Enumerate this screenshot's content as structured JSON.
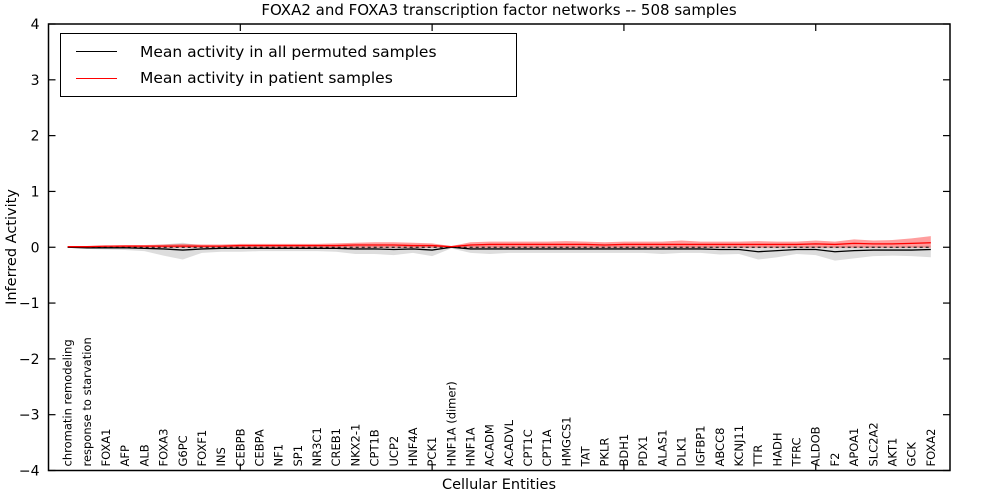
{
  "chart": {
    "title": "FOXA2 and FOXA3 transcription factor networks -- 508 samples",
    "xlabel": "Cellular Entities",
    "ylabel": "Inferred Activity"
  },
  "legend": {
    "items": [
      {
        "label": "Mean activity in all permuted samples",
        "color": "#000000"
      },
      {
        "label": "Mean activity in patient samples",
        "color": "#ff0000"
      }
    ],
    "position": "upper left"
  },
  "chart_data": {
    "type": "line",
    "title": "FOXA2 and FOXA3 transcription factor networks -- 508 samples",
    "xlabel": "Cellular Entities",
    "ylabel": "Inferred Activity",
    "ylim": [
      -4,
      4
    ],
    "yticks": [
      -4,
      -3,
      -2,
      -1,
      0,
      1,
      2,
      3,
      4
    ],
    "xticks_major": [
      10,
      20,
      30,
      40
    ],
    "grid": false,
    "legend_position": "upper left",
    "zero_line": {
      "style": "dashed",
      "color": "#000000",
      "y": 0
    },
    "categories": [
      "chromatin remodeling",
      "response to starvation",
      "FOXA1",
      "AFP",
      "ALB",
      "FOXA3",
      "G6PC",
      "FOXF1",
      "INS",
      "CEBPB",
      "CEBPA",
      "NF1",
      "SP1",
      "NR3C1",
      "CREB1",
      "NKX2-1",
      "CPT1B",
      "UCP2",
      "HNF4A",
      "PCK1",
      "HNF1A (dimer)",
      "HNF1A",
      "ACADM",
      "ACADVL",
      "CPT1C",
      "CPT1A",
      "HMGCS1",
      "TAT",
      "PKLR",
      "BDH1",
      "PDX1",
      "ALAS1",
      "DLK1",
      "IGFBP1",
      "ABCC8",
      "KCNJ11",
      "TTR",
      "HADH",
      "TFRC",
      "ALDOB",
      "F2",
      "APOA1",
      "SLC2A2",
      "AKT1",
      "GCK",
      "FOXA2"
    ],
    "series": [
      {
        "name": "Mean activity in all permuted samples",
        "color": "#000000",
        "band_color": "#bbbbbb",
        "band_opacity": 0.5,
        "values": [
          0.0,
          -0.01,
          -0.01,
          -0.01,
          -0.02,
          -0.03,
          -0.05,
          -0.03,
          -0.02,
          -0.02,
          -0.02,
          -0.02,
          -0.02,
          -0.02,
          -0.02,
          -0.03,
          -0.03,
          -0.04,
          -0.03,
          -0.05,
          0.0,
          -0.03,
          -0.03,
          -0.03,
          -0.03,
          -0.03,
          -0.03,
          -0.03,
          -0.03,
          -0.03,
          -0.03,
          -0.03,
          -0.03,
          -0.03,
          -0.04,
          -0.04,
          -0.08,
          -0.06,
          -0.04,
          -0.04,
          -0.08,
          -0.06,
          -0.05,
          -0.05,
          -0.05,
          -0.04
        ],
        "band_low": [
          -0.01,
          -0.03,
          -0.04,
          -0.05,
          -0.07,
          -0.15,
          -0.22,
          -0.1,
          -0.08,
          -0.08,
          -0.07,
          -0.07,
          -0.07,
          -0.07,
          -0.08,
          -0.12,
          -0.12,
          -0.14,
          -0.1,
          -0.16,
          -0.02,
          -0.1,
          -0.12,
          -0.1,
          -0.1,
          -0.1,
          -0.1,
          -0.1,
          -0.1,
          -0.1,
          -0.1,
          -0.12,
          -0.1,
          -0.1,
          -0.13,
          -0.12,
          -0.22,
          -0.18,
          -0.12,
          -0.14,
          -0.24,
          -0.2,
          -0.16,
          -0.15,
          -0.16,
          -0.18
        ],
        "band_high": [
          0.01,
          0.01,
          0.02,
          0.02,
          0.03,
          0.05,
          0.08,
          0.03,
          0.02,
          0.02,
          0.02,
          0.02,
          0.02,
          0.02,
          0.02,
          0.02,
          0.02,
          0.02,
          0.02,
          0.02,
          0.02,
          0.02,
          0.02,
          0.02,
          0.02,
          0.02,
          0.02,
          0.02,
          0.02,
          0.02,
          0.02,
          0.02,
          0.02,
          0.02,
          0.02,
          0.02,
          0.02,
          0.02,
          0.02,
          0.02,
          0.02,
          0.02,
          0.02,
          0.01,
          0.02,
          0.03
        ]
      },
      {
        "name": "Mean activity in patient samples",
        "color": "#ff0000",
        "band_color": "#ff0000",
        "band_opacity": 0.38,
        "values": [
          0.01,
          0.01,
          0.02,
          0.02,
          0.02,
          0.02,
          0.02,
          0.02,
          0.02,
          0.03,
          0.03,
          0.03,
          0.03,
          0.03,
          0.03,
          0.04,
          0.04,
          0.04,
          0.03,
          0.03,
          0.01,
          0.04,
          0.05,
          0.05,
          0.05,
          0.05,
          0.05,
          0.05,
          0.04,
          0.05,
          0.05,
          0.05,
          0.05,
          0.05,
          0.05,
          0.05,
          0.05,
          0.05,
          0.05,
          0.06,
          0.05,
          0.07,
          0.06,
          0.06,
          0.07,
          0.08
        ],
        "band_low": [
          0.0,
          0.0,
          -0.01,
          -0.01,
          -0.01,
          -0.01,
          -0.01,
          -0.01,
          -0.01,
          -0.01,
          -0.01,
          -0.01,
          -0.01,
          -0.01,
          -0.01,
          -0.01,
          -0.01,
          -0.01,
          -0.01,
          -0.01,
          0.0,
          -0.01,
          -0.01,
          -0.01,
          -0.01,
          -0.01,
          -0.01,
          -0.01,
          -0.01,
          -0.01,
          -0.01,
          -0.01,
          -0.01,
          -0.01,
          -0.01,
          -0.01,
          -0.01,
          -0.01,
          -0.01,
          -0.01,
          -0.01,
          -0.01,
          -0.01,
          -0.01,
          -0.01,
          -0.01
        ],
        "band_high": [
          0.02,
          0.02,
          0.03,
          0.04,
          0.04,
          0.05,
          0.06,
          0.05,
          0.05,
          0.06,
          0.06,
          0.06,
          0.06,
          0.06,
          0.07,
          0.08,
          0.09,
          0.09,
          0.08,
          0.07,
          0.02,
          0.09,
          0.1,
          0.1,
          0.1,
          0.1,
          0.11,
          0.1,
          0.09,
          0.1,
          0.1,
          0.1,
          0.12,
          0.1,
          0.1,
          0.1,
          0.11,
          0.1,
          0.1,
          0.12,
          0.1,
          0.14,
          0.12,
          0.13,
          0.16,
          0.2
        ]
      }
    ]
  }
}
